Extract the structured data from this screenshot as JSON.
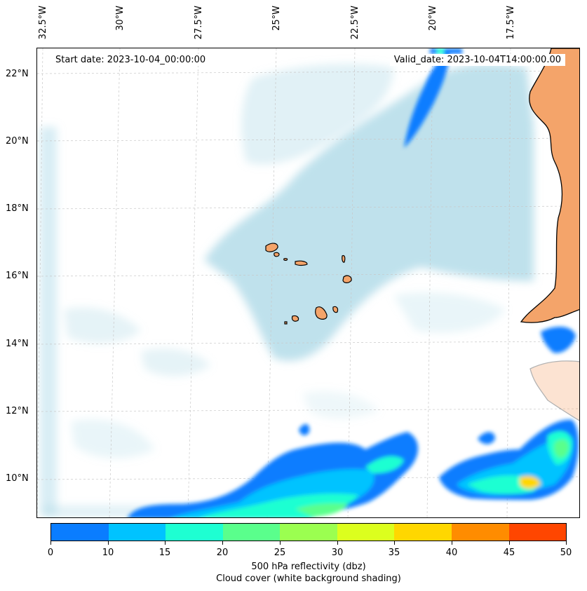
{
  "map": {
    "lon_labels": [
      "32.5°W",
      "30°W",
      "27.5°W",
      "25°W",
      "22.5°W",
      "20°W",
      "17.5°W"
    ],
    "lat_labels": [
      "22°N",
      "20°N",
      "18°N",
      "16°N",
      "14°N",
      "12°N",
      "10°N"
    ],
    "start_label": "Start date: 2023-10-04_00:00:00",
    "valid_label": "Valid_date: 2023-10-04T14:00:00.00",
    "land_color": "#f4a46a",
    "cloud_color": "#a9d7e6",
    "coast_color": "#000000",
    "grid_color": "#c8c8c8"
  },
  "colorbar": {
    "ticks": [
      "0",
      "10",
      "15",
      "20",
      "25",
      "30",
      "35",
      "40",
      "45",
      "50"
    ],
    "colors": [
      "#0a7dff",
      "#00c3ff",
      "#1effd2",
      "#5aff8c",
      "#9bff50",
      "#dcff1e",
      "#ffd700",
      "#ff8c00",
      "#ff4600"
    ],
    "title": "500 hPa reflectivity (dbz)",
    "subtitle": "Cloud cover (white background shading)"
  }
}
